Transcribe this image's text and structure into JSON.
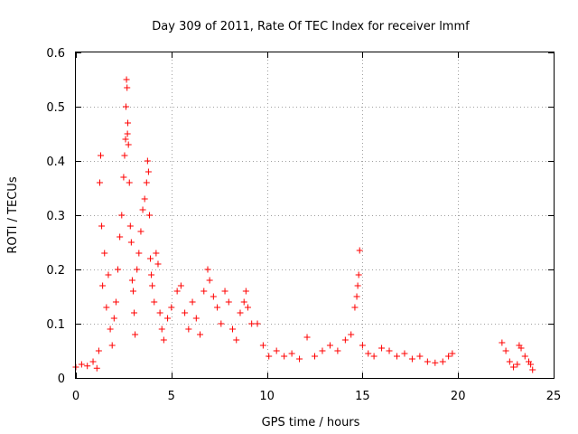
{
  "chart_data": {
    "type": "scatter",
    "title": "Day 309 of 2011, Rate Of TEC Index for receiver lmmf",
    "xlabel": "GPS time / hours",
    "ylabel": "ROTI / TECUs",
    "xlim": [
      0,
      25
    ],
    "ylim": [
      0,
      0.6
    ],
    "xticks": [
      0,
      5,
      10,
      15,
      20,
      25
    ],
    "xtick_labels": [
      "0",
      "5",
      "10",
      "15",
      "20",
      "25"
    ],
    "yticks": [
      0,
      0.1,
      0.2,
      0.3,
      0.4,
      0.5,
      0.6
    ],
    "ytick_labels": [
      "0",
      "0.1",
      "0.2",
      "0.3",
      "0.4",
      "0.5",
      "0.6"
    ],
    "grid": true,
    "marker": "+",
    "color": "#ff0000",
    "series": [
      {
        "name": "ROTI",
        "x": [
          0.0,
          0.3,
          0.6,
          0.9,
          1.1,
          1.2,
          1.25,
          1.3,
          1.35,
          1.4,
          1.5,
          1.6,
          1.7,
          1.8,
          1.9,
          2.0,
          2.1,
          2.2,
          2.3,
          2.4,
          2.5,
          2.55,
          2.6,
          2.62,
          2.65,
          2.68,
          2.7,
          2.72,
          2.75,
          2.8,
          2.85,
          2.9,
          2.95,
          3.0,
          3.05,
          3.1,
          3.2,
          3.3,
          3.4,
          3.5,
          3.6,
          3.7,
          3.75,
          3.8,
          3.85,
          3.9,
          3.95,
          4.0,
          4.1,
          4.2,
          4.3,
          4.4,
          4.5,
          4.6,
          4.8,
          5.0,
          5.3,
          5.5,
          5.7,
          5.9,
          6.1,
          6.3,
          6.5,
          6.7,
          6.9,
          7.0,
          7.2,
          7.4,
          7.6,
          7.8,
          8.0,
          8.2,
          8.4,
          8.6,
          8.8,
          8.9,
          9.0,
          9.2,
          9.5,
          9.8,
          10.1,
          10.5,
          10.9,
          11.3,
          11.7,
          12.1,
          12.5,
          12.9,
          13.3,
          13.7,
          14.1,
          14.4,
          14.6,
          14.7,
          14.75,
          14.8,
          14.85,
          15.0,
          15.3,
          15.6,
          16.0,
          16.4,
          16.8,
          17.2,
          17.6,
          18.0,
          18.4,
          18.8,
          19.2,
          19.5,
          19.7,
          22.3,
          22.5,
          22.7,
          22.9,
          23.1,
          23.2,
          23.3,
          23.5,
          23.7,
          23.8,
          23.9
        ],
        "y": [
          0.02,
          0.025,
          0.022,
          0.03,
          0.018,
          0.05,
          0.36,
          0.41,
          0.28,
          0.17,
          0.23,
          0.13,
          0.19,
          0.09,
          0.06,
          0.11,
          0.14,
          0.2,
          0.26,
          0.3,
          0.37,
          0.41,
          0.44,
          0.5,
          0.55,
          0.535,
          0.45,
          0.47,
          0.43,
          0.36,
          0.28,
          0.25,
          0.18,
          0.16,
          0.12,
          0.08,
          0.2,
          0.23,
          0.27,
          0.31,
          0.33,
          0.36,
          0.4,
          0.38,
          0.3,
          0.22,
          0.19,
          0.17,
          0.14,
          0.23,
          0.21,
          0.12,
          0.09,
          0.07,
          0.11,
          0.13,
          0.16,
          0.17,
          0.12,
          0.09,
          0.14,
          0.11,
          0.08,
          0.16,
          0.2,
          0.18,
          0.15,
          0.13,
          0.1,
          0.16,
          0.14,
          0.09,
          0.07,
          0.12,
          0.14,
          0.16,
          0.13,
          0.1,
          0.1,
          0.06,
          0.04,
          0.05,
          0.04,
          0.045,
          0.035,
          0.075,
          0.04,
          0.05,
          0.06,
          0.05,
          0.07,
          0.08,
          0.13,
          0.15,
          0.17,
          0.19,
          0.235,
          0.06,
          0.045,
          0.04,
          0.055,
          0.05,
          0.04,
          0.045,
          0.035,
          0.04,
          0.03,
          0.028,
          0.03,
          0.04,
          0.045,
          0.065,
          0.05,
          0.03,
          0.02,
          0.025,
          0.06,
          0.055,
          0.04,
          0.03,
          0.025,
          0.015
        ]
      }
    ]
  }
}
